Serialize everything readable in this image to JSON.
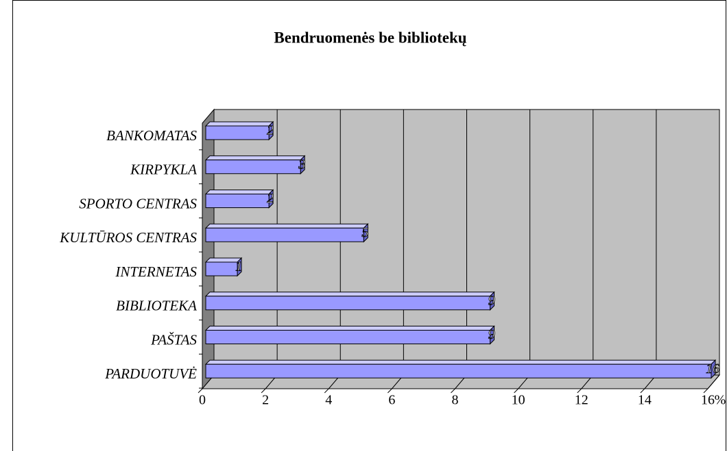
{
  "chart_data": {
    "type": "bar",
    "orientation": "horizontal",
    "title": "Bendruomenės be bibliotekų",
    "categories": [
      "BANKOMATAS",
      "KIRPYKLA",
      "SPORTO CENTRAS",
      "KULTŪROS CENTRAS",
      "INTERNETAS",
      "BIBLIOTEKA",
      "PAŠTAS",
      "PARDUOTUVĖ"
    ],
    "values": [
      2,
      3,
      2,
      5,
      1,
      9,
      9,
      16
    ],
    "color": "#9999ff",
    "x_label": "%",
    "xlim": [
      0,
      16
    ],
    "xticks": [
      0,
      2,
      4,
      6,
      8,
      10,
      12,
      14,
      16
    ],
    "grid": true
  }
}
